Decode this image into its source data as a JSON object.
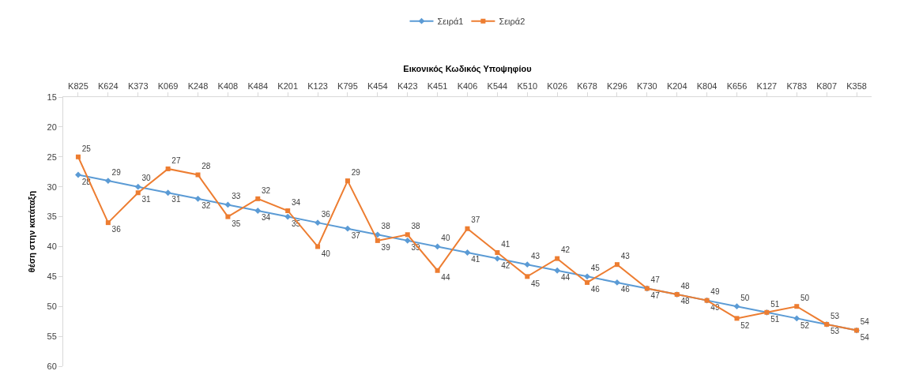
{
  "chart_data": {
    "type": "line",
    "xlabel": "Εικονικός Κωδικός Υποψηφίου",
    "ylabel": "θέση στην κατάταξη",
    "categories": [
      "K825",
      "K624",
      "K373",
      "K069",
      "K248",
      "K408",
      "K484",
      "K201",
      "K123",
      "K795",
      "K454",
      "K423",
      "K451",
      "K406",
      "K544",
      "K510",
      "K026",
      "K678",
      "K296",
      "K730",
      "K204",
      "K804",
      "K656",
      "K127",
      "K783",
      "K807",
      "K358"
    ],
    "series": [
      {
        "name": "Σειρά1",
        "color": "#5b9bd5",
        "marker": "diamond",
        "values": [
          28,
          29,
          30,
          31,
          32,
          33,
          34,
          35,
          36,
          37,
          38,
          39,
          40,
          41,
          42,
          43,
          44,
          45,
          46,
          47,
          48,
          49,
          50,
          51,
          52,
          53,
          54
        ]
      },
      {
        "name": "Σειρά2",
        "color": "#ed7d31",
        "marker": "square",
        "values": [
          25,
          36,
          31,
          27,
          28,
          35,
          32,
          34,
          40,
          29,
          39,
          38,
          44,
          37,
          41,
          45,
          42,
          46,
          43,
          47,
          48,
          49,
          52,
          51,
          50,
          53,
          54
        ]
      }
    ],
    "ylim": [
      60,
      15
    ],
    "yticks": [
      15,
      20,
      25,
      30,
      35,
      40,
      45,
      50,
      55,
      60
    ],
    "grid": false,
    "legend": "top",
    "line_style": "solid",
    "data_labels": true
  }
}
